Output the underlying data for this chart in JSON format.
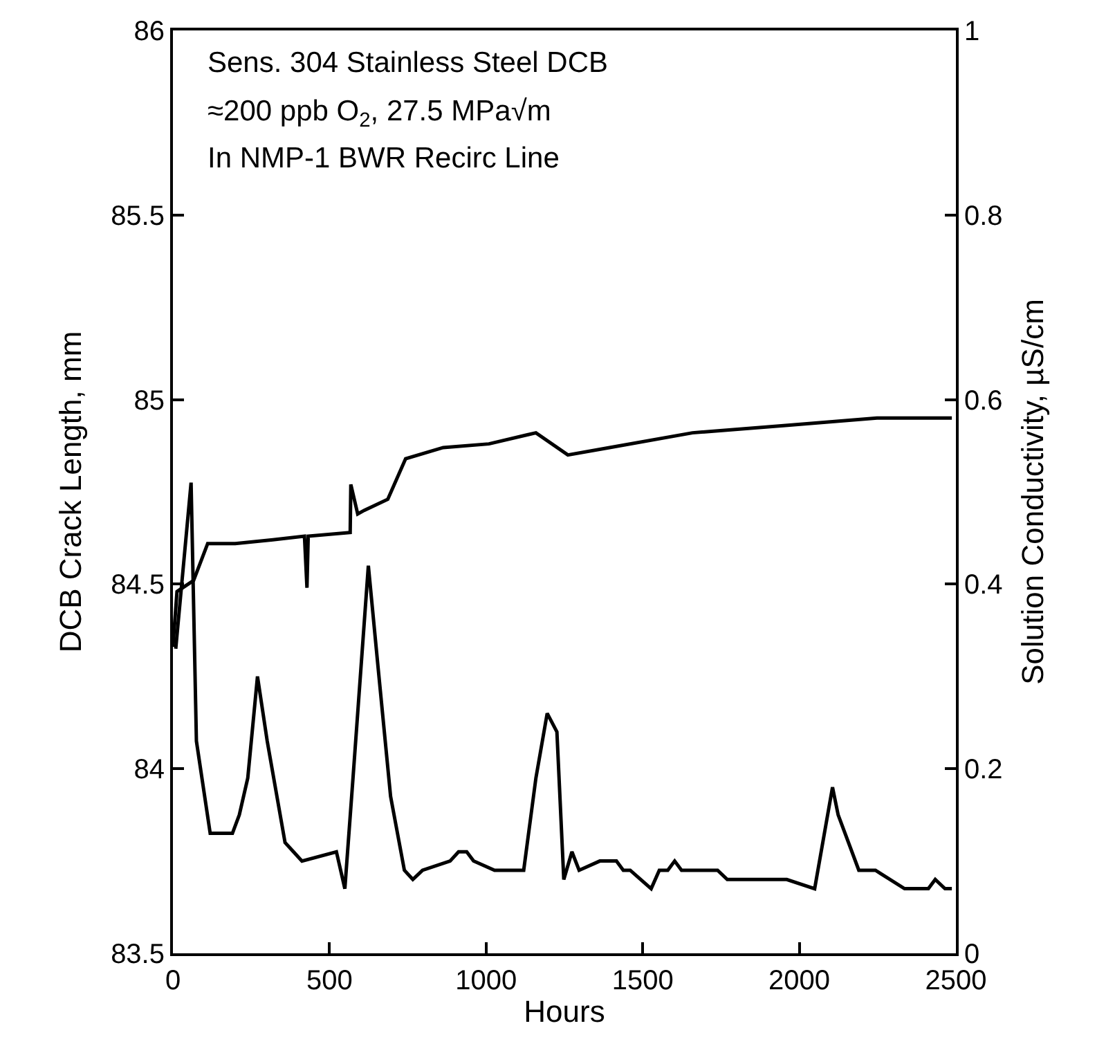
{
  "chart_data": {
    "type": "line",
    "xlabel": "Hours",
    "ylabel": "DCB Crack Length, mm",
    "y2label": "Solution Conductivity, µS/cm",
    "annotations": [
      "Sens. 304 Stainless Steel DCB",
      "≈200 ppb O$_{2}$, 27.5 MPa√m",
      "In NMP-1 BWR Recirc Line"
    ],
    "xlim": [
      0,
      2500
    ],
    "xticks": [
      0,
      500,
      1000,
      1500,
      2000,
      2500
    ],
    "ylim": [
      83.5,
      86
    ],
    "yticks": [
      83.5,
      84,
      84.5,
      85,
      85.5,
      86
    ],
    "y2lim": [
      0,
      1
    ],
    "y2ticks": [
      0,
      0.2,
      0.4,
      0.6,
      0.8,
      1
    ],
    "line_style": "solid",
    "marker": "none",
    "series": [
      {
        "color": "#000000",
        "axis": "y",
        "x": [
          0,
          13,
          66,
          111,
          199,
          319,
          420,
          428,
          432,
          566,
          568,
          590,
          611,
          686,
          743,
          863,
          1009,
          1159,
          1261,
          1394,
          1659,
          1956,
          2248,
          2487
        ],
        "values": [
          84.33,
          84.48,
          84.51,
          84.61,
          84.61,
          84.62,
          84.63,
          84.49,
          84.63,
          84.64,
          84.77,
          84.69,
          84.7,
          84.73,
          84.84,
          84.87,
          84.88,
          84.91,
          84.85,
          84.87,
          84.91,
          84.93,
          84.95,
          84.95
        ]
      },
      {
        "color": "#000000",
        "axis": "y2",
        "x": [
          9,
          58,
          75,
          119,
          190,
          212,
          239,
          270,
          301,
          358,
          385,
          412,
          522,
          549,
          575,
          624,
          655,
          695,
          739,
          766,
          797,
          885,
          912,
          938,
          960,
          1027,
          1120,
          1159,
          1195,
          1226,
          1248,
          1274,
          1297,
          1363,
          1416,
          1438,
          1460,
          1527,
          1553,
          1580,
          1602,
          1624,
          1739,
          1770,
          1960,
          2049,
          2106,
          2124,
          2190,
          2243,
          2336,
          2412,
          2434,
          2465,
          2487
        ],
        "values": [
          0.33,
          0.51,
          0.23,
          0.13,
          0.13,
          0.15,
          0.19,
          0.3,
          0.23,
          0.12,
          0.11,
          0.1,
          0.11,
          0.07,
          0.19,
          0.42,
          0.31,
          0.17,
          0.09,
          0.08,
          0.09,
          0.1,
          0.11,
          0.11,
          0.1,
          0.09,
          0.09,
          0.19,
          0.26,
          0.24,
          0.08,
          0.11,
          0.09,
          0.1,
          0.1,
          0.09,
          0.09,
          0.07,
          0.09,
          0.09,
          0.1,
          0.09,
          0.09,
          0.08,
          0.08,
          0.07,
          0.18,
          0.15,
          0.09,
          0.09,
          0.07,
          0.07,
          0.08,
          0.07,
          0.07
        ]
      }
    ]
  }
}
